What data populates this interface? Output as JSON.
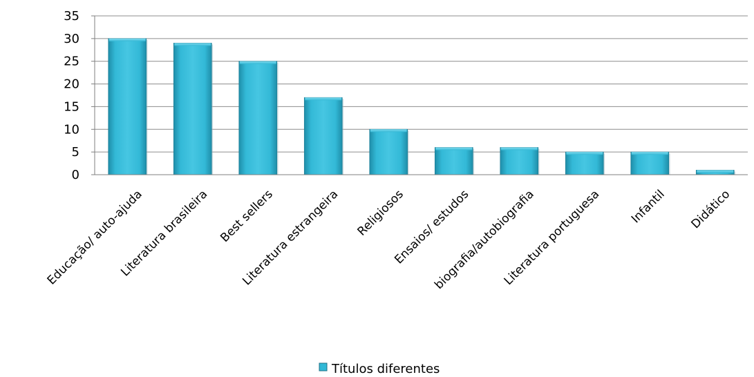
{
  "chart_data": {
    "type": "bar",
    "categories": [
      "Educação/ auto-ajuda",
      "Literatura brasileira",
      "Best sellers",
      "Literatura estrangeira",
      "Religiosos",
      "Ensaios/ estudos",
      "biografia/autobiografia",
      "Literatura portuguesa",
      "Infantil",
      "Didático"
    ],
    "series": [
      {
        "name": "Títulos diferentes",
        "values": [
          30,
          29,
          25,
          17,
          10,
          6,
          6,
          5,
          5,
          1
        ],
        "color": "#31b8d6"
      }
    ],
    "title": "",
    "xlabel": "",
    "ylabel": "",
    "ylim": [
      0,
      35
    ],
    "yticks": [
      0,
      5,
      10,
      15,
      20,
      25,
      30,
      35
    ],
    "grid": true,
    "legend_position": "bottom"
  }
}
